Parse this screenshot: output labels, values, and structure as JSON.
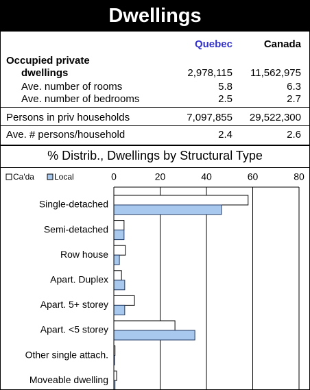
{
  "header": {
    "title": "Dwellings"
  },
  "table": {
    "columns": [
      "Quebec",
      "Canada"
    ],
    "rows": [
      [
        "Occupied private dwellings",
        "2,978,115",
        "11,562,975"
      ],
      [
        "Ave. number of rooms",
        "5.8",
        "6.3"
      ],
      [
        "Ave. number of bedrooms",
        "2.5",
        "2.7"
      ],
      [
        "Persons in priv households",
        "7,097,855",
        "29,522,300"
      ],
      [
        "Ave. # persons/household",
        "2.4",
        "2.6"
      ]
    ]
  },
  "chart_data": {
    "type": "bar",
    "orientation": "horizontal",
    "title": "% Distrib., Dwellings by Structural Type",
    "categories": [
      "Single-detached",
      "Semi-detached",
      "Row house",
      "Apart. Duplex",
      "Apart. 5+ storey",
      "Apart. <5 storey",
      "Other single attach.",
      "Moveable dwelling"
    ],
    "series": [
      {
        "name": "Ca'da",
        "color": "#ffffff",
        "values": [
          58,
          4.4,
          5,
          3.3,
          8.9,
          26.4,
          0.5,
          1.2
        ]
      },
      {
        "name": "Local",
        "color": "#a9c8ee",
        "values": [
          46.5,
          4.4,
          2.4,
          4.7,
          4.7,
          35,
          0.3,
          0.5
        ]
      }
    ],
    "xlim": [
      0,
      80
    ],
    "xticks": [
      0,
      20,
      40,
      60,
      80
    ],
    "grid": true
  }
}
